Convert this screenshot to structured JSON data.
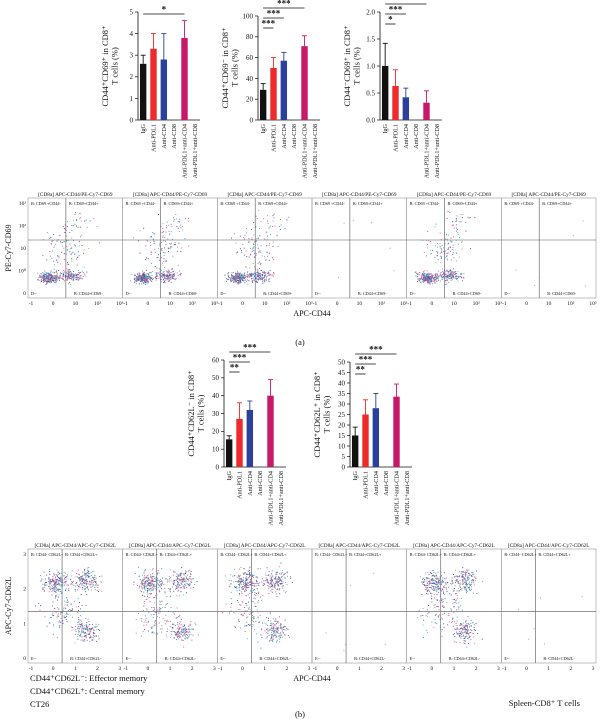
{
  "colors": {
    "IgG": "#111111",
    "Anti-PDL1": "#ee2a2a",
    "Anti-CD4": "#2b3f9c",
    "Anti-CD8": "#888888",
    "Anti-PDL1+anti-CD4": "#c8186a",
    "Anti-PDL1+anti-CD8": "#555555"
  },
  "chart_data": [
    {
      "type": "bar",
      "panel": "a",
      "ylabel": [
        "CD44⁺CD69⁺ in CD8⁺",
        "T cells (%)"
      ],
      "categories": [
        "IgG",
        "Anti-PDL1",
        "Anti-CD4",
        "Anti-CD8",
        "Anti-PDL1+anti-CD4",
        "Anti-PDL1+anti-CD8"
      ],
      "values": [
        2.6,
        3.3,
        2.8,
        0,
        3.8,
        0
      ],
      "errors": [
        0.4,
        0.7,
        1.2,
        0,
        0.8,
        0
      ],
      "ylim": [
        0,
        5
      ],
      "yticks": [
        0,
        1,
        2,
        3,
        4,
        5
      ],
      "sig": [
        {
          "from": 0,
          "to": 4,
          "label": "*"
        }
      ]
    },
    {
      "type": "bar",
      "panel": "a",
      "ylabel": [
        "CD44⁺CD69⁻ in CD8⁺",
        "T cells (%)"
      ],
      "categories": [
        "IgG",
        "Anti-PDL1",
        "Anti-CD4",
        "Anti-CD8",
        "Anti-PDL1+anti-CD4",
        "Anti-PDL1+anti-CD8"
      ],
      "values": [
        29,
        50,
        57,
        0,
        71,
        0
      ],
      "errors": [
        6,
        10,
        8,
        0,
        10,
        0
      ],
      "ylim": [
        0,
        100
      ],
      "yticks": [
        0,
        20,
        40,
        60,
        80,
        100
      ],
      "sig": [
        {
          "from": 0,
          "to": 1,
          "label": "***"
        },
        {
          "from": 0,
          "to": 2,
          "label": "***"
        },
        {
          "from": 0,
          "to": 4,
          "label": "***"
        }
      ]
    },
    {
      "type": "bar",
      "panel": "a",
      "ylabel": [
        "CD44⁻CD69⁺ in CD8⁺",
        "T cells (%)"
      ],
      "categories": [
        "IgG",
        "Anti-PDL1",
        "Anti-CD4",
        "Anti-CD8",
        "Anti-PDL1+anti-CD4",
        "Anti-PDL1+anti-CD8"
      ],
      "values": [
        1.0,
        0.63,
        0.42,
        0,
        0.32,
        0
      ],
      "errors": [
        0.42,
        0.3,
        0.17,
        0,
        0.22,
        0
      ],
      "ylim": [
        0,
        2.0
      ],
      "yticks": [
        0.0,
        0.5,
        1.0,
        1.5,
        2.0
      ],
      "sig": [
        {
          "from": 0,
          "to": 1,
          "label": "*"
        },
        {
          "from": 0,
          "to": 2,
          "label": "***"
        },
        {
          "from": 0,
          "to": 4,
          "label": "***"
        }
      ]
    },
    {
      "type": "bar",
      "panel": "b",
      "ylabel": [
        "CD44⁺CD62L⁻ in CD8⁺",
        "T cells (%)"
      ],
      "categories": [
        "IgG",
        "Anti-PDL1",
        "Anti-CD4",
        "Anti-CD8",
        "Anti-PDL1+anti-CD4",
        "Anti-PDL1+anti-CD8"
      ],
      "values": [
        15.5,
        27,
        32,
        0,
        40,
        0
      ],
      "errors": [
        2,
        9,
        5,
        0,
        9,
        0
      ],
      "ylim": [
        0,
        60
      ],
      "yticks": [
        0,
        10,
        20,
        30,
        40,
        50,
        60
      ],
      "sig": [
        {
          "from": 0,
          "to": 1,
          "label": "**"
        },
        {
          "from": 0,
          "to": 2,
          "label": "***"
        },
        {
          "from": 0,
          "to": 4,
          "label": "***"
        }
      ]
    },
    {
      "type": "bar",
      "panel": "b",
      "ylabel": [
        "CD44⁺CD62L⁺ in CD8⁺",
        "T cells (%)"
      ],
      "categories": [
        "IgG",
        "Anti-PDL1",
        "Anti-CD4",
        "Anti-CD8",
        "Anti-PDL1+anti-CD4",
        "Anti-PDL1+anti-CD8"
      ],
      "values": [
        15,
        25,
        28,
        0,
        33.5,
        0
      ],
      "errors": [
        4,
        7,
        7,
        0,
        6,
        0
      ],
      "ylim": [
        0,
        50
      ],
      "yticks": [
        0,
        5,
        10,
        15,
        20,
        25,
        30,
        35,
        40,
        45,
        50
      ],
      "sig": [
        {
          "from": 0,
          "to": 1,
          "label": "**"
        },
        {
          "from": 0,
          "to": 2,
          "label": "***"
        },
        {
          "from": 0,
          "to": 4,
          "label": "***"
        }
      ]
    }
  ],
  "flow_a": {
    "title": "[CD8a] APC-CD44/PE-Cy7-CD69",
    "xlabel": "APC-CD44",
    "ylabel": "PE-Cy7-CD69",
    "xticks": [
      "-1",
      "0",
      "10",
      "10²",
      "10³"
    ],
    "yticks": [
      "10³",
      "10²",
      "10",
      "10⁰",
      "0"
    ],
    "quads": {
      "ul": "B: CD69 +CD44-",
      "ur": "B: CD69+CD44+",
      "ll": "D--",
      "lr": "B: CD44+CD69-"
    },
    "plots": [
      {
        "density": "high"
      },
      {
        "density": "high"
      },
      {
        "density": "high"
      },
      {
        "density": "none"
      },
      {
        "density": "high"
      },
      {
        "density": "none"
      }
    ]
  },
  "flow_b": {
    "title": "[CD8a] APC-CD44/APC-Cy7-CD62L",
    "xlabel": "APC-CD44",
    "ylabel": "APC-Cy7-CD62L",
    "xticks": [
      "-1",
      "0",
      "1",
      "2",
      "3"
    ],
    "yticks": [
      "3",
      "2",
      "1",
      "0"
    ],
    "quads": {
      "ul": "B: CD44- CD62L+",
      "ur": "B: CD44+CD62L+",
      "ll": "E--",
      "lr": "B: CD44+CD62L-"
    },
    "plots": [
      {
        "density": "high"
      },
      {
        "density": "high"
      },
      {
        "density": "high"
      },
      {
        "density": "none"
      },
      {
        "density": "high"
      },
      {
        "density": "none"
      }
    ]
  },
  "panel_a_label": "(a)",
  "panel_b_label": "(b)",
  "notes": [
    "CD44⁺CD62L⁻: Effector memory",
    "CD44⁺CD62L⁺: Central memory",
    "CT26"
  ],
  "spleen_note": "Spleen-CD8⁺ T cells"
}
